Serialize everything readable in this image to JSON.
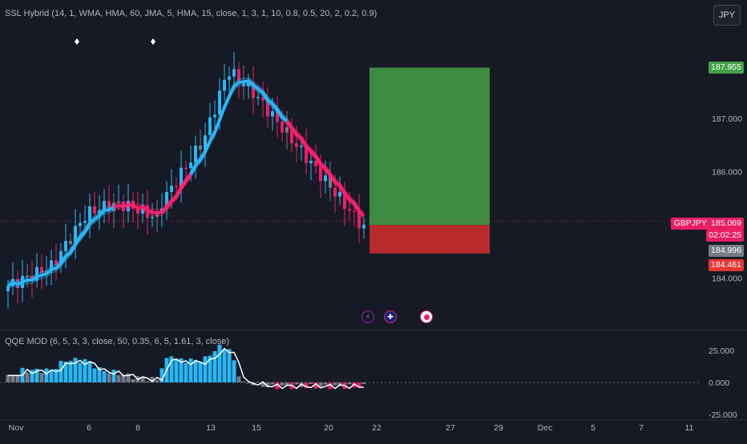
{
  "ssl_indicator": {
    "title": "SSL Hybrid (14, 1, WMA, HMA, 60, JMA, 5, HMA, 15, close, 1, 3, 1, 10, 0.8, 0.5, 20, 2, 0.2, 0.9)"
  },
  "qqe_indicator": {
    "title": "QQE MOD (6, 5, 3, 3, close, 50, 0.35, 6, 5, 1.61, 3, close)"
  },
  "currency_button": {
    "label": "JPY"
  },
  "symbol_label": "GBPJPY",
  "price_axis": {
    "ticks": [
      "187.000",
      "186.000",
      "184.000"
    ],
    "oscillator_ticks": [
      "25.000",
      "0.000",
      "-25.000"
    ]
  },
  "price_tags": {
    "target": "187.955",
    "current": "185.069",
    "countdown": "02:02:25",
    "entry": "184.996",
    "stop": "184.461"
  },
  "time_axis": {
    "labels": [
      "Nov",
      "6",
      "8",
      "13",
      "15",
      "20",
      "22",
      "27",
      "29",
      "Dec",
      "5",
      "7",
      "11"
    ]
  },
  "chart_data": {
    "type": "candlestick",
    "symbol": "GBPJPY",
    "price_levels": {
      "target": 187.955,
      "current": 185.069,
      "entry": 184.996,
      "stop": 184.461
    },
    "price_range": [
      183.6,
      188.7
    ],
    "oscillator_range": [
      -30,
      34
    ],
    "colors": {
      "bull": "#29b6f6",
      "bear": "#e91e63",
      "neutral": "#787b86",
      "ssl_up": "#29b6f6",
      "ssl_down": "#ff1f6e",
      "profit_zone": "#43a047",
      "loss_zone": "#d32f2f",
      "background": "#161a25"
    },
    "signal_markers": [
      "buy-diamond",
      "buy-diamond"
    ]
  },
  "icons": {
    "flash": "lightning-icon",
    "flag": "uk-flag-icon",
    "record": "target-icon"
  }
}
